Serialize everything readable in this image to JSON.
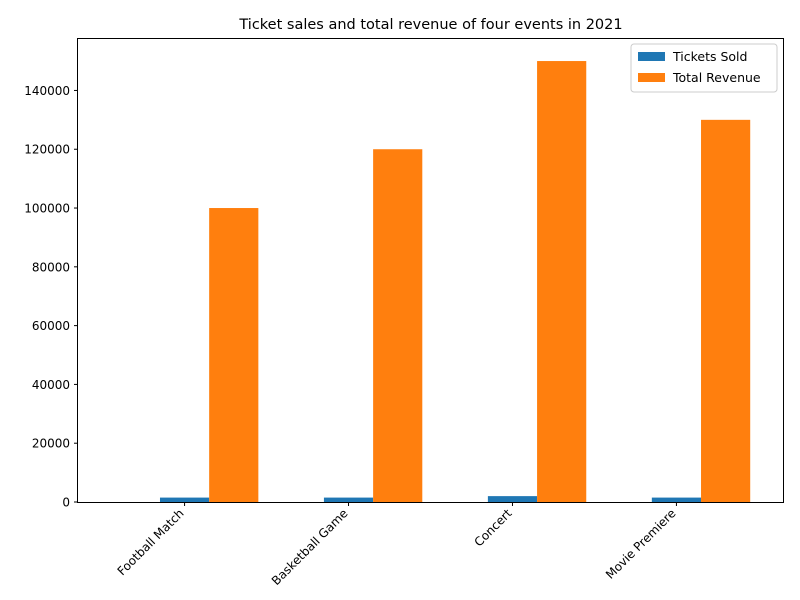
{
  "chart_data": {
    "type": "bar",
    "title": "Ticket sales and total revenue of four events in 2021",
    "xlabel": "",
    "ylabel": "",
    "categories": [
      "Football Match",
      "Basketball Game",
      "Concert",
      "Movie Premiere"
    ],
    "series": [
      {
        "name": "Tickets Sold",
        "values": [
          1500,
          1500,
          2000,
          1500
        ],
        "color": "#1f77b4"
      },
      {
        "name": "Total Revenue",
        "values": [
          100000,
          120000,
          150000,
          130000
        ],
        "color": "#ff7f0e"
      }
    ],
    "ylim": [
      0,
      157500
    ],
    "yticks": [
      0,
      20000,
      40000,
      60000,
      80000,
      100000,
      120000,
      140000
    ],
    "grid": false,
    "legend_position": "top-right"
  }
}
